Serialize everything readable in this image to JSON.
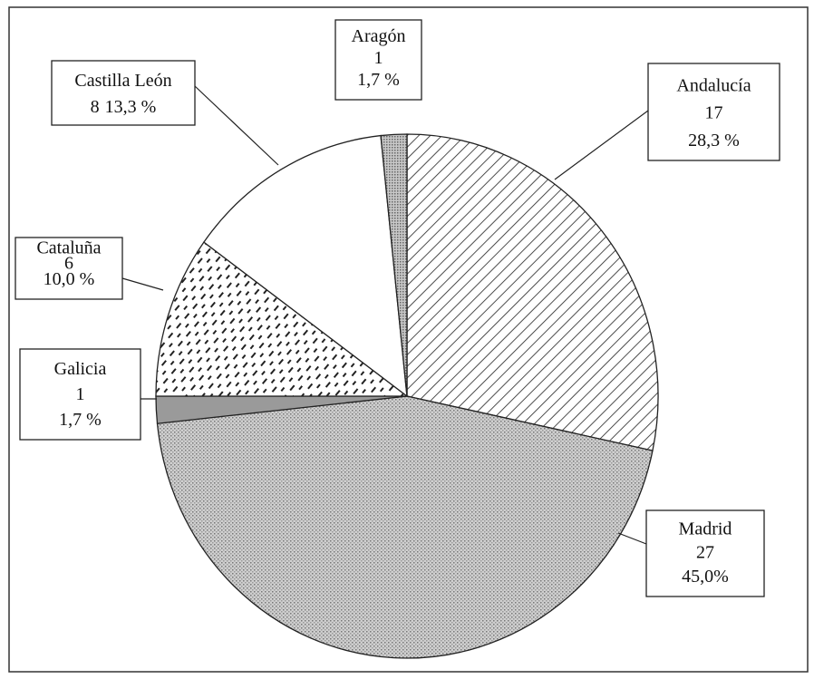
{
  "chart_data": {
    "type": "pie",
    "categories": [
      "Andalucía",
      "Madrid",
      "Galicia",
      "Cataluña",
      "Castilla León",
      "Aragón"
    ],
    "values": [
      17,
      27,
      1,
      6,
      8,
      1
    ],
    "percent_labels": [
      "28,3 %",
      "45,0%",
      "1,7 %",
      "10,0 %",
      "13,3 %",
      "1,7 %"
    ],
    "colors": [
      "#ffffff",
      "#c4c4c4",
      "#9a9a9a",
      "#ffffff",
      "#ffffff",
      "#b0b0b0"
    ],
    "patterns": [
      "hatch",
      "stipple",
      "solid",
      "dash",
      "solid",
      "dots"
    ]
  }
}
